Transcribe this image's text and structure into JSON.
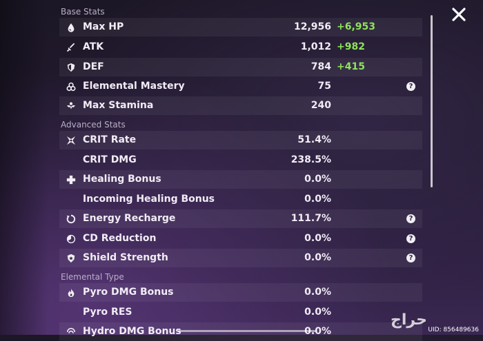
{
  "sections": {
    "base": "Base Stats",
    "advanced": "Advanced Stats",
    "elemental": "Elemental Type"
  },
  "base_stats": [
    {
      "icon": "drop-icon",
      "label": "Max HP",
      "value": "12,956",
      "bonus": "+6,953"
    },
    {
      "icon": "sword-icon",
      "label": "ATK",
      "value": "1,012",
      "bonus": "+982"
    },
    {
      "icon": "shield-icon",
      "label": "DEF",
      "value": "784",
      "bonus": "+415"
    },
    {
      "icon": "atom-icon",
      "label": "Elemental Mastery",
      "value": "75",
      "help": "?"
    },
    {
      "icon": "stamina-icon",
      "label": "Max Stamina",
      "value": "240"
    }
  ],
  "advanced_stats": [
    {
      "icon": "crit-icon",
      "label": "CRIT Rate",
      "value": "51.4%"
    },
    {
      "label": "CRIT DMG",
      "value": "238.5%"
    },
    {
      "icon": "plus-cross-icon",
      "label": "Healing Bonus",
      "value": "0.0%"
    },
    {
      "label": "Incoming Healing Bonus",
      "value": "0.0%"
    },
    {
      "icon": "energy-recharge-icon",
      "label": "Energy Recharge",
      "value": "111.7%",
      "help": "?"
    },
    {
      "icon": "cd-reduction-icon",
      "label": "CD Reduction",
      "value": "0.0%",
      "help": "?"
    },
    {
      "icon": "shield-strength-icon",
      "label": "Shield Strength",
      "value": "0.0%",
      "help": "?"
    }
  ],
  "elemental_stats": [
    {
      "icon": "pyro-icon",
      "label": "Pyro DMG Bonus",
      "value": "0.0%"
    },
    {
      "label": "Pyro RES",
      "value": "0.0%"
    },
    {
      "icon": "hydro-icon",
      "label": "Hydro DMG Bonus",
      "value": "0.0%"
    }
  ],
  "close_label": "close",
  "watermark": "حراج",
  "uid": "UID: 856489636"
}
